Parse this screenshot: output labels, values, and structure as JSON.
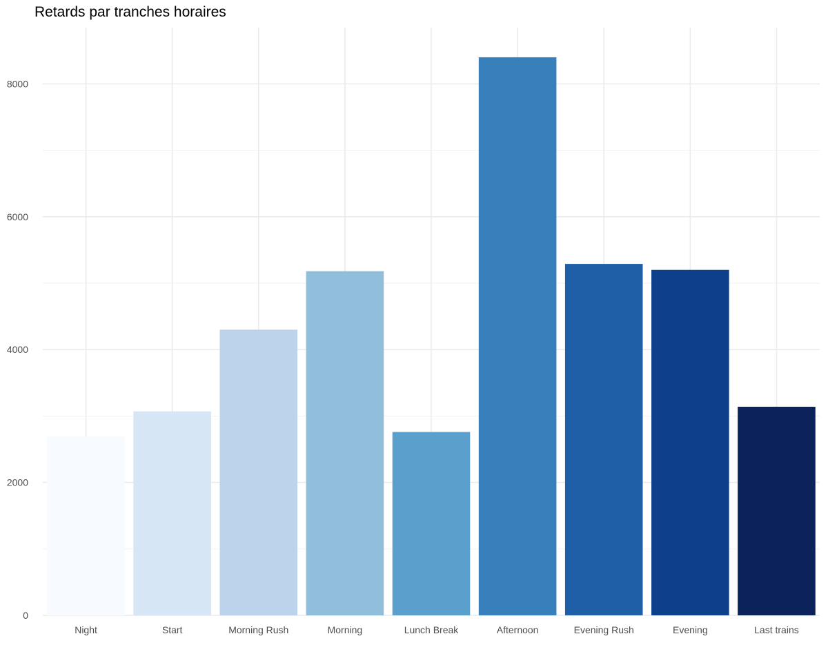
{
  "chart_data": {
    "type": "bar",
    "title": "Retards par tranches horaires",
    "xlabel": "",
    "ylabel": "",
    "categories": [
      "Night",
      "Start",
      "Morning Rush",
      "Morning",
      "Lunch Break",
      "Afternoon",
      "Evening Rush",
      "Evening",
      "Last trains"
    ],
    "values": [
      2690,
      3070,
      4300,
      5180,
      2760,
      8400,
      5290,
      5200,
      3140
    ],
    "colors": [
      "#f7fbff",
      "#d6e6f4",
      "#bcd3eb",
      "#91bedb",
      "#5b9fcc",
      "#3880bb",
      "#1e5fa8",
      "#0d3f8b",
      "#0c225b"
    ],
    "ylim": [
      0,
      8800
    ],
    "yticks": [
      0,
      2000,
      4000,
      6000,
      8000
    ],
    "ytick_labels": [
      "0",
      "2000",
      "4000",
      "6000",
      "8000"
    ],
    "grid": true,
    "legend": "none"
  }
}
